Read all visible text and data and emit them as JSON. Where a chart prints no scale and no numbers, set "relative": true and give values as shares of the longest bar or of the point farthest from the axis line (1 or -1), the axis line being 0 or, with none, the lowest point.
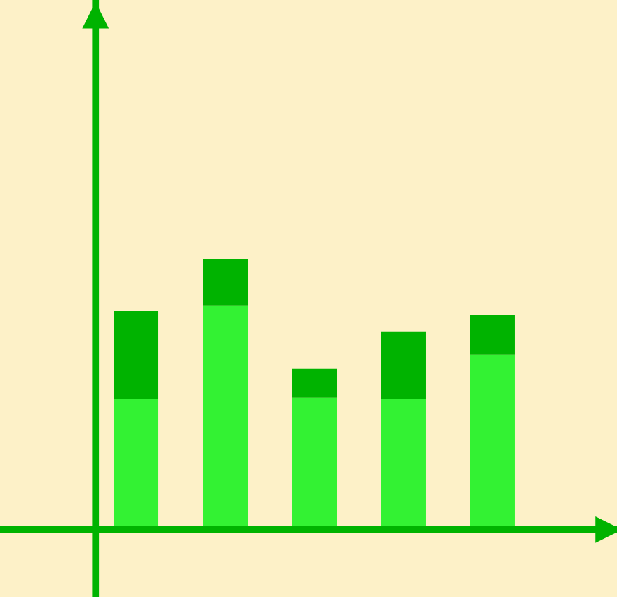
{
  "chart_data": {
    "type": "bar",
    "stacked": true,
    "relative": true,
    "categories": [
      null,
      null,
      null,
      null,
      null
    ],
    "series": [
      {
        "color": "#33f233",
        "values": [
          0.482,
          0.829,
          0.487,
          0.482,
          0.648
        ]
      },
      {
        "color": "#00b300",
        "values": [
          0.326,
          0.171,
          0.109,
          0.249,
          0.145
        ]
      }
    ]
  }
}
